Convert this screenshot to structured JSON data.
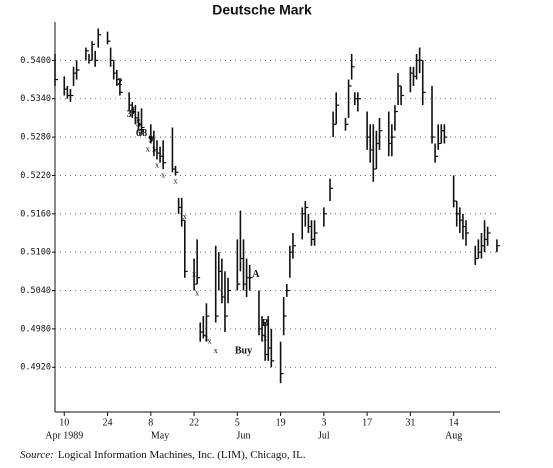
{
  "chart_data": {
    "type": "ohlc",
    "title": "Deutsche Mark",
    "source_label": "Source:",
    "source": "Logical Information Machines, Inc. (LIM), Chicago, IL.",
    "color": "#111111",
    "grid": true,
    "ylim": [
      0.485,
      0.546
    ],
    "yticks": [
      {
        "value": 0.492,
        "label": "0.4920"
      },
      {
        "value": 0.498,
        "label": "0.4980"
      },
      {
        "value": 0.504,
        "label": "0.5040"
      },
      {
        "value": 0.51,
        "label": "0.5100"
      },
      {
        "value": 0.516,
        "label": "0.5160"
      },
      {
        "value": 0.522,
        "label": "0.5220"
      },
      {
        "value": 0.528,
        "label": "0.5280"
      },
      {
        "value": 0.534,
        "label": "0.5340"
      },
      {
        "value": 0.54,
        "label": "0.5400"
      }
    ],
    "xlim": [
      "1989-04-07",
      "1989-08-29"
    ],
    "xticks": [
      {
        "value": "1989-04-10",
        "label": "10"
      },
      {
        "value": "1989-04-24",
        "label": "24"
      },
      {
        "value": "1989-05-08",
        "label": "8"
      },
      {
        "value": "1989-05-22",
        "label": "22"
      },
      {
        "value": "1989-06-05",
        "label": "5"
      },
      {
        "value": "1989-06-19",
        "label": "19"
      },
      {
        "value": "1989-07-03",
        "label": "3"
      },
      {
        "value": "1989-07-17",
        "label": "17"
      },
      {
        "value": "1989-07-31",
        "label": "31"
      },
      {
        "value": "1989-08-14",
        "label": "14"
      }
    ],
    "month_labels": [
      {
        "value": "1989-04-10",
        "label": "Apr 1989"
      },
      {
        "value": "1989-05-11",
        "label": "May"
      },
      {
        "value": "1989-06-07",
        "label": "Jun"
      },
      {
        "value": "1989-07-03",
        "label": "Jul"
      },
      {
        "value": "1989-08-14",
        "label": "Aug"
      }
    ],
    "x": [
      "1989-04-07",
      "1989-04-10",
      "1989-04-11",
      "1989-04-12",
      "1989-04-13",
      "1989-04-14",
      "1989-04-17",
      "1989-04-18",
      "1989-04-19",
      "1989-04-20",
      "1989-04-21",
      "1989-04-24",
      "1989-04-25",
      "1989-04-26",
      "1989-04-27",
      "1989-04-28",
      "1989-05-01",
      "1989-05-02",
      "1989-05-03",
      "1989-05-04",
      "1989-05-05",
      "1989-05-08",
      "1989-05-09",
      "1989-05-10",
      "1989-05-11",
      "1989-05-12",
      "1989-05-15",
      "1989-05-16",
      "1989-05-17",
      "1989-05-18",
      "1989-05-19",
      "1989-05-22",
      "1989-05-23",
      "1989-05-24",
      "1989-05-25",
      "1989-05-26",
      "1989-05-29",
      "1989-05-30",
      "1989-05-31",
      "1989-06-01",
      "1989-06-02",
      "1989-06-05",
      "1989-06-06",
      "1989-06-07",
      "1989-06-08",
      "1989-06-09",
      "1989-06-12",
      "1989-06-13",
      "1989-06-14",
      "1989-06-15",
      "1989-06-16",
      "1989-06-19",
      "1989-06-20",
      "1989-06-21",
      "1989-06-22",
      "1989-06-23",
      "1989-06-26",
      "1989-06-27",
      "1989-06-28",
      "1989-06-29",
      "1989-06-30",
      "1989-07-03",
      "1989-07-05",
      "1989-07-06",
      "1989-07-07",
      "1989-07-10",
      "1989-07-11",
      "1989-07-12",
      "1989-07-13",
      "1989-07-14",
      "1989-07-17",
      "1989-07-18",
      "1989-07-19",
      "1989-07-20",
      "1989-07-21",
      "1989-07-24",
      "1989-07-25",
      "1989-07-26",
      "1989-07-27",
      "1989-07-28",
      "1989-07-31",
      "1989-08-01",
      "1989-08-02",
      "1989-08-03",
      "1989-08-04",
      "1989-08-07",
      "1989-08-08",
      "1989-08-09",
      "1989-08-10",
      "1989-08-11",
      "1989-08-14",
      "1989-08-15",
      "1989-08-16",
      "1989-08-17",
      "1989-08-18",
      "1989-08-21",
      "1989-08-22",
      "1989-08-23",
      "1989-08-24",
      "1989-08-25",
      "1989-08-28"
    ],
    "high": [
      0.541,
      0.5375,
      0.536,
      0.5355,
      0.539,
      0.54,
      0.542,
      0.541,
      0.543,
      0.5415,
      0.545,
      0.5445,
      0.542,
      0.54,
      0.5385,
      0.537,
      0.535,
      0.5335,
      0.533,
      0.532,
      0.5325,
      0.53,
      0.529,
      0.5275,
      0.5265,
      0.5275,
      0.5295,
      0.5235,
      0.5185,
      0.5185,
      0.515,
      0.509,
      0.512,
      0.499,
      0.5,
      0.502,
      0.511,
      0.51,
      0.509,
      0.507,
      0.506,
      0.512,
      0.5165,
      0.512,
      0.509,
      0.508,
      0.504,
      0.5,
      0.499,
      0.5,
      0.498,
      0.496,
      0.503,
      0.505,
      0.511,
      0.513,
      0.517,
      0.518,
      0.516,
      0.515,
      0.515,
      0.517,
      0.5215,
      0.532,
      0.535,
      0.531,
      0.537,
      0.541,
      0.535,
      0.535,
      0.532,
      0.53,
      0.53,
      0.529,
      0.531,
      0.532,
      0.53,
      0.533,
      0.538,
      0.536,
      0.539,
      0.539,
      0.541,
      0.542,
      0.54,
      0.536,
      0.527,
      0.53,
      0.53,
      0.53,
      0.522,
      0.518,
      0.517,
      0.516,
      0.515,
      0.511,
      0.512,
      0.513,
      0.515,
      0.514,
      0.512
    ],
    "low": [
      0.536,
      0.5345,
      0.534,
      0.5335,
      0.536,
      0.537,
      0.54,
      0.5395,
      0.54,
      0.539,
      0.542,
      0.5425,
      0.539,
      0.537,
      0.536,
      0.5345,
      0.532,
      0.531,
      0.53,
      0.529,
      0.5285,
      0.527,
      0.525,
      0.5245,
      0.524,
      0.523,
      0.5225,
      0.522,
      0.516,
      0.514,
      0.506,
      0.504,
      0.505,
      0.496,
      0.4965,
      0.496,
      0.499,
      0.504,
      0.502,
      0.4975,
      0.502,
      0.504,
      0.507,
      0.504,
      0.503,
      0.504,
      0.497,
      0.496,
      0.493,
      0.493,
      0.492,
      0.4895,
      0.497,
      0.503,
      0.506,
      0.509,
      0.512,
      0.514,
      0.513,
      0.511,
      0.511,
      0.514,
      0.518,
      0.528,
      0.53,
      0.529,
      0.531,
      0.537,
      0.533,
      0.532,
      0.526,
      0.524,
      0.521,
      0.523,
      0.526,
      0.525,
      0.525,
      0.529,
      0.533,
      0.533,
      0.535,
      0.536,
      0.537,
      0.538,
      0.533,
      0.527,
      0.524,
      0.526,
      0.527,
      0.527,
      0.517,
      0.514,
      0.513,
      0.512,
      0.511,
      0.508,
      0.509,
      0.509,
      0.51,
      0.511,
      0.51
    ],
    "close": [
      0.537,
      0.5355,
      0.5345,
      0.5345,
      0.538,
      0.5385,
      0.5415,
      0.54,
      0.5425,
      0.54,
      0.544,
      0.543,
      0.54,
      0.538,
      0.537,
      0.535,
      0.533,
      0.532,
      0.531,
      0.53,
      0.5295,
      0.528,
      0.526,
      0.5255,
      0.525,
      0.524,
      0.523,
      0.5225,
      0.517,
      0.515,
      0.507,
      0.505,
      0.506,
      0.4975,
      0.497,
      0.5,
      0.5,
      0.507,
      0.503,
      0.5,
      0.504,
      0.505,
      0.509,
      0.505,
      0.506,
      0.506,
      0.498,
      0.497,
      0.494,
      0.495,
      0.493,
      0.491,
      0.5,
      0.504,
      0.51,
      0.511,
      0.516,
      0.517,
      0.514,
      0.512,
      0.513,
      0.516,
      0.52,
      0.53,
      0.533,
      0.53,
      0.536,
      0.539,
      0.534,
      0.534,
      0.528,
      0.526,
      0.523,
      0.527,
      0.529,
      0.527,
      0.528,
      0.532,
      0.536,
      0.5345,
      0.538,
      0.5375,
      0.54,
      0.54,
      0.535,
      0.528,
      0.525,
      0.527,
      0.529,
      0.528,
      0.518,
      0.516,
      0.515,
      0.514,
      0.513,
      0.509,
      0.51,
      0.511,
      0.512,
      0.513,
      0.511
    ],
    "annotations": [
      {
        "label": "2",
        "x": "1989-04-28",
        "y": 0.5365
      },
      {
        "label": "3",
        "x": "1989-05-01",
        "y": 0.5315
      },
      {
        "label": "4",
        "x": "1989-05-02",
        "y": 0.532
      },
      {
        "label": "5",
        "x": "1989-05-04",
        "y": 0.53
      },
      {
        "label": "6",
        "x": "1989-05-04",
        "y": 0.5285
      },
      {
        "label": "7",
        "x": "1989-05-05",
        "y": 0.5285
      },
      {
        "label": "8",
        "x": "1989-05-06",
        "y": 0.5285
      },
      {
        "label": "9",
        "x": "1989-05-08",
        "y": 0.5275
      },
      {
        "label": "x",
        "x": "1989-05-07",
        "y": 0.526
      },
      {
        "label": "x",
        "x": "1989-05-09",
        "y": 0.526
      },
      {
        "label": "x",
        "x": "1989-05-10",
        "y": 0.5235
      },
      {
        "label": "x",
        "x": "1989-05-12",
        "y": 0.522
      },
      {
        "label": "x",
        "x": "1989-05-16",
        "y": 0.521
      },
      {
        "label": "x",
        "x": "1989-05-19",
        "y": 0.5155
      },
      {
        "label": "x",
        "x": "1989-05-22",
        "y": 0.5065
      },
      {
        "label": "x",
        "x": "1989-05-23",
        "y": 0.5035
      },
      {
        "label": "x",
        "x": "1989-05-26",
        "y": 0.4965
      },
      {
        "label": "x",
        "x": "1989-05-27",
        "y": 0.496
      },
      {
        "label": "x",
        "x": "1989-05-29",
        "y": 0.4945
      },
      {
        "label": "x",
        "x": "1989-06-14",
        "y": 0.4965
      },
      {
        "label": "A",
        "x": "1989-06-11",
        "y": 0.5065
      },
      {
        "label": "B",
        "x": "1989-06-14",
        "y": 0.4988
      },
      {
        "label": "Buy",
        "x": "1989-06-07",
        "y": 0.4945
      }
    ]
  }
}
